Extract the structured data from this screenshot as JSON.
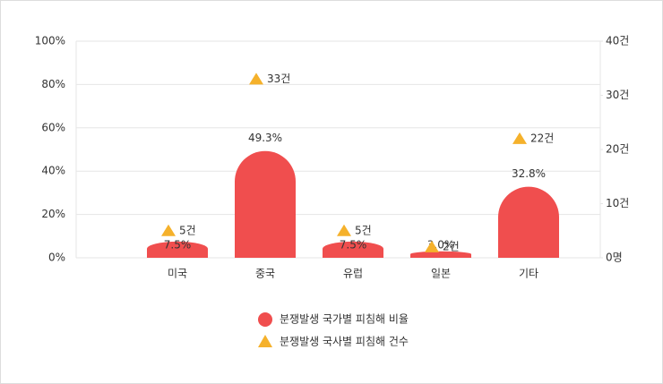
{
  "chart_data": {
    "type": "bar",
    "categories": [
      "미국",
      "중국",
      "유럽",
      "일본",
      "기타"
    ],
    "series": [
      {
        "name": "분쟁발생 국가별 피침해 비율",
        "color": "#f04e4e",
        "values": [
          7.5,
          49.3,
          7.5,
          3.0,
          32.8
        ],
        "value_labels": [
          "7.5%",
          "49.3%",
          "7.5%",
          "3.0%",
          "32.8%"
        ]
      },
      {
        "name": "분쟁발생 국사별 피침해 건수",
        "color": "#f5b12b",
        "axis": "y2",
        "values": [
          5,
          33,
          5,
          2,
          22
        ],
        "value_labels": [
          "5건",
          "33건",
          "5건",
          "2건",
          "22건"
        ]
      }
    ],
    "ylim": [
      0,
      100
    ],
    "yticks": [
      {
        "value": 0,
        "label": "0%"
      },
      {
        "value": 20,
        "label": "20%"
      },
      {
        "value": 40,
        "label": "40%"
      },
      {
        "value": 60,
        "label": "60%"
      },
      {
        "value": 80,
        "label": "80%"
      },
      {
        "value": 100,
        "label": "100%"
      }
    ],
    "y2lim": [
      0,
      40
    ],
    "y2ticks": [
      {
        "value": 0,
        "label": "0명"
      },
      {
        "value": 10,
        "label": "10건"
      },
      {
        "value": 20,
        "label": "20건"
      },
      {
        "value": 30,
        "label": "30건"
      },
      {
        "value": 40,
        "label": "40건"
      }
    ],
    "grid": true
  }
}
